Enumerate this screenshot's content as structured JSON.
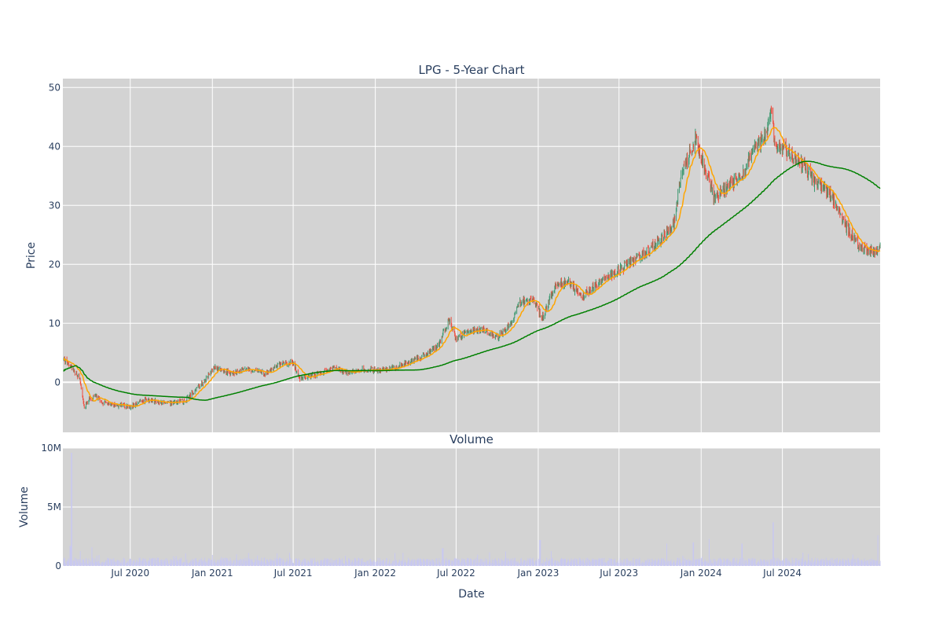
{
  "chart_data": [
    {
      "type": "candlestick",
      "title": "LPG - 5-Year Chart",
      "ylabel": "Price",
      "ylim": [
        -8.5,
        51.5
      ],
      "yticks": [
        0,
        10,
        20,
        30,
        40,
        50
      ],
      "xrange": [
        "2020-02-01",
        "2025-02-05"
      ],
      "xticks": [
        "2020-07-01",
        "2021-01-01",
        "2021-07-01",
        "2022-01-01",
        "2022-07-01",
        "2023-01-01",
        "2023-07-01",
        "2024-01-01",
        "2024-07-01"
      ],
      "xtick_labels": [
        "Jul 2020",
        "Jan 2021",
        "Jul 2021",
        "Jan 2022",
        "Jul 2022",
        "Jan 2023",
        "Jul 2023",
        "Jan 2024",
        "Jul 2024"
      ],
      "grid": true,
      "price_series": {
        "name": "",
        "increasing_color": "#3d9970",
        "decreasing_color": "#ef4a3c",
        "close_keypoints": [
          [
            "2020-02-03",
            3.8
          ],
          [
            "2020-02-15",
            3.2
          ],
          [
            "2020-03-01",
            1.5
          ],
          [
            "2020-03-10",
            0.5
          ],
          [
            "2020-03-20",
            -4.5
          ],
          [
            "2020-03-28",
            -3.0
          ],
          [
            "2020-04-15",
            -2.5
          ],
          [
            "2020-05-01",
            -3.5
          ],
          [
            "2020-06-01",
            -3.8
          ],
          [
            "2020-07-01",
            -4.2
          ],
          [
            "2020-08-01",
            -3.0
          ],
          [
            "2020-09-01",
            -3.2
          ],
          [
            "2020-10-01",
            -3.5
          ],
          [
            "2020-11-01",
            -3.2
          ],
          [
            "2020-11-20",
            -1.5
          ],
          [
            "2020-12-15",
            0.3
          ],
          [
            "2021-01-05",
            2.5
          ],
          [
            "2021-02-15",
            1.5
          ],
          [
            "2021-03-15",
            2.3
          ],
          [
            "2021-05-01",
            1.5
          ],
          [
            "2021-06-01",
            3.0
          ],
          [
            "2021-07-01",
            3.3
          ],
          [
            "2021-07-15",
            0.5
          ],
          [
            "2021-09-01",
            1.5
          ],
          [
            "2021-10-01",
            2.5
          ],
          [
            "2021-11-01",
            1.5
          ],
          [
            "2021-12-01",
            2.2
          ],
          [
            "2022-01-15",
            2.0
          ],
          [
            "2022-02-15",
            2.5
          ],
          [
            "2022-03-20",
            3.5
          ],
          [
            "2022-04-20",
            4.5
          ],
          [
            "2022-05-20",
            6.0
          ],
          [
            "2022-06-15",
            10.5
          ],
          [
            "2022-07-01",
            7.5
          ],
          [
            "2022-08-01",
            8.5
          ],
          [
            "2022-09-01",
            9.0
          ],
          [
            "2022-10-01",
            7.5
          ],
          [
            "2022-11-01",
            10.0
          ],
          [
            "2022-11-20",
            13.5
          ],
          [
            "2022-12-20",
            14.0
          ],
          [
            "2023-01-10",
            11.0
          ],
          [
            "2023-02-10",
            16.5
          ],
          [
            "2023-03-10",
            17.0
          ],
          [
            "2023-04-10",
            14.5
          ],
          [
            "2023-05-10",
            16.5
          ],
          [
            "2023-06-10",
            18.0
          ],
          [
            "2023-07-10",
            19.5
          ],
          [
            "2023-08-10",
            21.0
          ],
          [
            "2023-09-01",
            22.0
          ],
          [
            "2023-10-01",
            24.0
          ],
          [
            "2023-11-01",
            27.0
          ],
          [
            "2023-11-15",
            34.0
          ],
          [
            "2023-12-01",
            38.0
          ],
          [
            "2023-12-20",
            41.5
          ],
          [
            "2024-01-10",
            36.0
          ],
          [
            "2024-02-01",
            31.0
          ],
          [
            "2024-03-01",
            33.5
          ],
          [
            "2024-04-01",
            35.0
          ],
          [
            "2024-05-01",
            40.0
          ],
          [
            "2024-05-25",
            42.0
          ],
          [
            "2024-06-05",
            47.0
          ],
          [
            "2024-06-15",
            40.0
          ],
          [
            "2024-07-15",
            39.0
          ],
          [
            "2024-08-15",
            37.0
          ],
          [
            "2024-09-15",
            33.5
          ],
          [
            "2024-10-15",
            32.0
          ],
          [
            "2024-11-15",
            27.0
          ],
          [
            "2024-12-15",
            23.5
          ],
          [
            "2025-01-15",
            22.0
          ],
          [
            "2025-02-05",
            22.8
          ]
        ]
      },
      "moving_averages": [
        {
          "name": "",
          "color": "#ffa500",
          "window": 20
        },
        {
          "name": "",
          "color": "#008000",
          "window": 200
        }
      ]
    },
    {
      "type": "bar",
      "title": "Volume",
      "ylabel": "Volume",
      "xlabel": "Date",
      "ylim": [
        0,
        10000000
      ],
      "yticks": [
        0,
        5000000,
        10000000
      ],
      "ytick_labels": [
        "0",
        "5M",
        "10M"
      ],
      "bar_color": "#c8c8f0",
      "typical_volume": 500000,
      "spikes": [
        [
          "2020-02-20",
          9600000
        ],
        [
          "2020-02-18",
          1700000
        ],
        [
          "2020-04-05",
          1600000
        ],
        [
          "2022-06-01",
          1500000
        ],
        [
          "2023-01-05",
          2200000
        ],
        [
          "2023-10-15",
          1900000
        ],
        [
          "2023-12-15",
          2000000
        ],
        [
          "2024-01-20",
          2300000
        ],
        [
          "2024-04-01",
          1900000
        ],
        [
          "2024-06-10",
          3700000
        ],
        [
          "2025-02-01",
          2600000
        ]
      ]
    }
  ]
}
